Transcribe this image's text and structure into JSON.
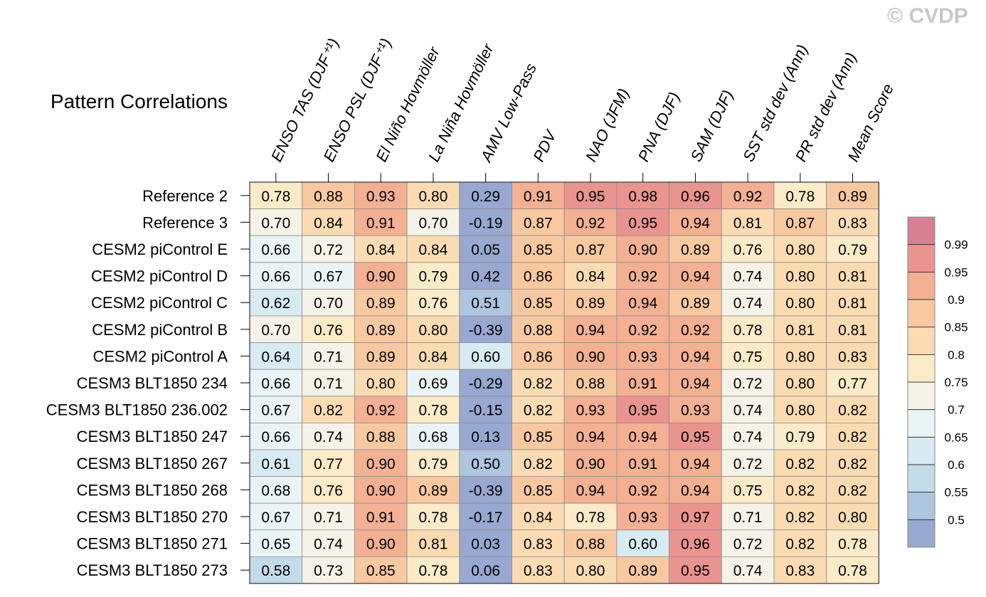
{
  "watermark": "© CVDP",
  "chart_data": {
    "type": "heatmap",
    "title": "Pattern Correlations",
    "columns": [
      "ENSO TAS (DJF⁺¹)",
      "ENSO PSL (DJF⁺¹)",
      "El Niño Hovmöller",
      "La Niña Hovmöller",
      "AMV Low-Pass",
      "PDV",
      "NAO (JFM)",
      "PNA (DJF)",
      "SAM (DJF)",
      "SST std dev (Ann)",
      "PR std dev (Ann)",
      "Mean Score"
    ],
    "rows": [
      "Reference 2",
      "Reference 3",
      "CESM2 piControl E",
      "CESM2 piControl D",
      "CESM2 piControl C",
      "CESM2 piControl B",
      "CESM2 piControl A",
      "CESM3 BLT1850 234",
      "CESM3 BLT1850 236.002",
      "CESM3 BLT1850 247",
      "CESM3 BLT1850 267",
      "CESM3 BLT1850 268",
      "CESM3 BLT1850 270",
      "CESM3 BLT1850 271",
      "CESM3 BLT1850 273"
    ],
    "values": [
      [
        "0.78",
        "0.88",
        "0.93",
        "0.80",
        "0.29",
        "0.91",
        "0.95",
        "0.98",
        "0.96",
        "0.92",
        "0.78",
        "0.89"
      ],
      [
        "0.70",
        "0.84",
        "0.91",
        "0.70",
        "-0.19",
        "0.87",
        "0.92",
        "0.95",
        "0.94",
        "0.81",
        "0.87",
        "0.83"
      ],
      [
        "0.66",
        "0.72",
        "0.84",
        "0.84",
        "0.05",
        "0.85",
        "0.87",
        "0.90",
        "0.89",
        "0.76",
        "0.80",
        "0.79"
      ],
      [
        "0.66",
        "0.67",
        "0.90",
        "0.79",
        "0.42",
        "0.86",
        "0.84",
        "0.92",
        "0.94",
        "0.74",
        "0.80",
        "0.81"
      ],
      [
        "0.62",
        "0.70",
        "0.89",
        "0.76",
        "0.51",
        "0.85",
        "0.89",
        "0.94",
        "0.89",
        "0.74",
        "0.80",
        "0.81"
      ],
      [
        "0.70",
        "0.76",
        "0.89",
        "0.80",
        "-0.39",
        "0.88",
        "0.94",
        "0.92",
        "0.92",
        "0.78",
        "0.81",
        "0.81"
      ],
      [
        "0.64",
        "0.71",
        "0.89",
        "0.84",
        "0.60",
        "0.86",
        "0.90",
        "0.93",
        "0.94",
        "0.75",
        "0.80",
        "0.83"
      ],
      [
        "0.66",
        "0.71",
        "0.80",
        "0.69",
        "-0.29",
        "0.82",
        "0.88",
        "0.91",
        "0.94",
        "0.72",
        "0.80",
        "0.77"
      ],
      [
        "0.67",
        "0.82",
        "0.92",
        "0.78",
        "-0.15",
        "0.82",
        "0.93",
        "0.95",
        "0.93",
        "0.74",
        "0.80",
        "0.82"
      ],
      [
        "0.66",
        "0.74",
        "0.88",
        "0.68",
        "0.13",
        "0.85",
        "0.94",
        "0.94",
        "0.95",
        "0.74",
        "0.79",
        "0.82"
      ],
      [
        "0.61",
        "0.77",
        "0.90",
        "0.79",
        "0.50",
        "0.82",
        "0.90",
        "0.91",
        "0.94",
        "0.72",
        "0.82",
        "0.82"
      ],
      [
        "0.68",
        "0.76",
        "0.90",
        "0.89",
        "-0.39",
        "0.85",
        "0.94",
        "0.92",
        "0.94",
        "0.75",
        "0.82",
        "0.82"
      ],
      [
        "0.67",
        "0.71",
        "0.91",
        "0.78",
        "-0.17",
        "0.84",
        "0.78",
        "0.93",
        "0.97",
        "0.71",
        "0.82",
        "0.80"
      ],
      [
        "0.65",
        "0.74",
        "0.90",
        "0.81",
        "0.03",
        "0.83",
        "0.88",
        "0.60",
        "0.96",
        "0.72",
        "0.82",
        "0.78"
      ],
      [
        "0.58",
        "0.73",
        "0.85",
        "0.78",
        "0.06",
        "0.83",
        "0.80",
        "0.89",
        "0.95",
        "0.74",
        "0.83",
        "0.78"
      ]
    ],
    "colorbar": {
      "levels": [
        0.5,
        0.55,
        0.6,
        0.65,
        0.7,
        0.75,
        0.8,
        0.85,
        0.9,
        0.95,
        0.99
      ],
      "labels": [
        "0.5",
        "0.55",
        "0.6",
        "0.65",
        "0.7",
        "0.75",
        "0.8",
        "0.85",
        "0.9",
        "0.95",
        "0.99"
      ],
      "colors": [
        "#98a8d0",
        "#aec5e0",
        "#c3dcea",
        "#d8eaf2",
        "#eaf4f5",
        "#f5f3e8",
        "#fcebc8",
        "#fbdcb2",
        "#f8c9a0",
        "#f3b092",
        "#ea9490",
        "#d77f93"
      ]
    }
  }
}
